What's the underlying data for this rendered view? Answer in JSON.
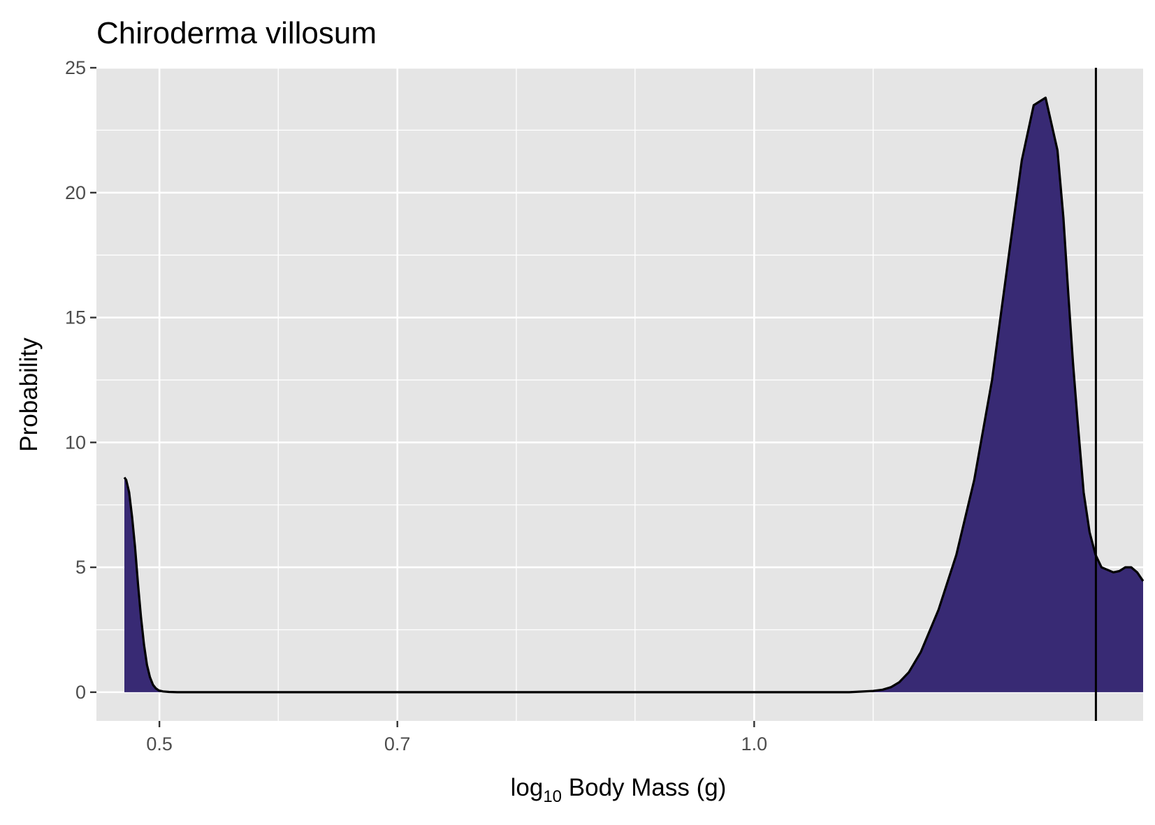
{
  "chart_data": {
    "type": "area",
    "title": "Chiroderma villosum",
    "xlabel_prefix": "log",
    "xlabel_subscript": "10",
    "xlabel_suffix": " Body Mass (g)",
    "ylabel": "Probability",
    "xlim": [
      0.447,
      1.327
    ],
    "ylim": [
      -1.15,
      25
    ],
    "x_log_scale": true,
    "x_ticks": [
      {
        "value": 3.162,
        "label": "0.5"
      },
      {
        "value": 5.012,
        "label": "0.7"
      },
      {
        "value": 10.0,
        "label": "1.0"
      }
    ],
    "x_minor_ticks": [
      3.98,
      6.31,
      7.94,
      12.59
    ],
    "y_ticks": [
      {
        "value": 0,
        "label": "0"
      },
      {
        "value": 5,
        "label": "5"
      },
      {
        "value": 10,
        "label": "10"
      },
      {
        "value": 15,
        "label": "15"
      },
      {
        "value": 20,
        "label": "20"
      },
      {
        "value": 25,
        "label": "25"
      }
    ],
    "y_minor_ticks": [
      2.5,
      7.5,
      12.5,
      17.5,
      22.5
    ],
    "grid": true,
    "legend": "none",
    "fill_color": "#382a74",
    "line_color": "#000000",
    "panel_color": "#e5e5e5",
    "vline_x": 1.2873,
    "series": [
      {
        "x": [
          0.4705,
          0.472,
          0.4745,
          0.477,
          0.4795,
          0.482,
          0.4845,
          0.487,
          0.4895,
          0.492,
          0.4945,
          0.497,
          0.4995,
          0.503,
          0.508,
          0.515,
          0.53,
          0.6,
          0.7,
          0.8,
          0.9,
          1.0,
          1.05,
          1.08,
          1.1,
          1.108,
          1.115,
          1.122,
          1.13,
          1.14,
          1.155,
          1.17,
          1.185,
          1.2,
          1.215,
          1.225,
          1.235,
          1.245,
          1.255,
          1.26,
          1.264,
          1.268,
          1.272,
          1.277,
          1.282,
          1.287,
          1.292,
          1.297,
          1.302,
          1.307,
          1.312,
          1.317,
          1.322,
          1.327
        ],
        "y": [
          8.6,
          8.5,
          8.0,
          7.0,
          5.8,
          4.3,
          3.0,
          1.9,
          1.1,
          0.6,
          0.3,
          0.15,
          0.07,
          0.03,
          0.01,
          0.0,
          0.0,
          0.0,
          0.0,
          0.0,
          0.0,
          0.0,
          0.0,
          0.0,
          0.05,
          0.1,
          0.2,
          0.4,
          0.8,
          1.6,
          3.3,
          5.5,
          8.5,
          12.5,
          17.8,
          21.3,
          23.5,
          23.8,
          21.7,
          19.0,
          16.0,
          13.2,
          10.8,
          8.0,
          6.4,
          5.5,
          5.0,
          4.9,
          4.8,
          4.85,
          5.0,
          5.0,
          4.8,
          4.45
        ]
      }
    ]
  }
}
